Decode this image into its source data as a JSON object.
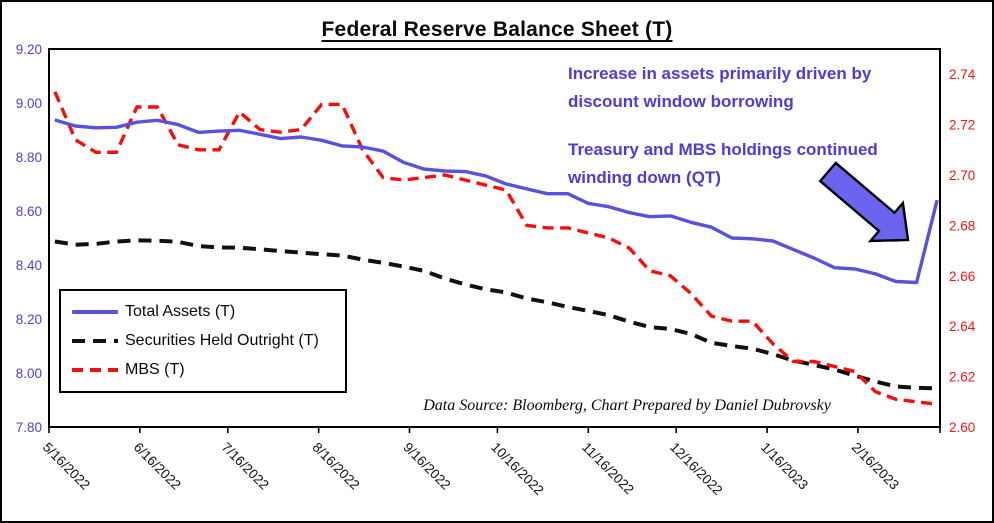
{
  "chart": {
    "title": "Federal Reserve Balance Sheet (T)",
    "source_note": "Data Source: Bloomberg, Chart Prepared by Daniel Dubrovsky",
    "annotation_increase": {
      "line1": "Increase in assets primarily driven by",
      "line2": "discount window borrowing"
    },
    "annotation_qt": {
      "line1": "Treasury and MBS holdings continued",
      "line2": "winding down (QT)"
    }
  },
  "colors": {
    "line_blue": "#5a52de",
    "annotation_blue": "#4c3cdb",
    "arrow_fill": "#6c63ee",
    "axis_left_label": "#4a43d6",
    "axis_right_label": "#f91410",
    "line_red": "#f90d0a",
    "line_black": "#111111",
    "axis_stroke": "#000000"
  },
  "chart_data": {
    "type": "line",
    "title": "Federal Reserve Balance Sheet (T)",
    "x_axis_start": "5/16/2022",
    "x_axis_end": "3/16/2023",
    "x_tick_labels": [
      "5/16/2022",
      "6/16/2022",
      "7/16/2022",
      "8/16/2022",
      "9/16/2022",
      "10/16/2022",
      "11/16/2022",
      "12/16/2022",
      "1/16/2023",
      "2/16/2023"
    ],
    "left_axis": {
      "min": 7.8,
      "max": 9.2,
      "ticks": [
        "9.20",
        "9.00",
        "8.80",
        "8.60",
        "8.40",
        "8.20",
        "8.00",
        "7.80"
      ]
    },
    "right_axis": {
      "min": 2.6,
      "max": 2.75,
      "ticks": [
        "2.74",
        "2.72",
        "2.70",
        "2.68",
        "2.66",
        "2.64",
        "2.62",
        "2.60"
      ]
    },
    "dates": [
      "5/18/2022",
      "5/25/2022",
      "6/1/2022",
      "6/8/2022",
      "6/15/2022",
      "6/22/2022",
      "6/29/2022",
      "7/6/2022",
      "7/13/2022",
      "7/20/2022",
      "7/27/2022",
      "8/3/2022",
      "8/10/2022",
      "8/17/2022",
      "8/24/2022",
      "8/31/2022",
      "9/7/2022",
      "9/14/2022",
      "9/21/2022",
      "9/28/2022",
      "10/5/2022",
      "10/12/2022",
      "10/19/2022",
      "10/26/2022",
      "11/2/2022",
      "11/9/2022",
      "11/16/2022",
      "11/23/2022",
      "11/30/2022",
      "12/7/2022",
      "12/14/2022",
      "12/21/2022",
      "12/28/2022",
      "1/4/2023",
      "1/11/2023",
      "1/18/2023",
      "1/25/2023",
      "2/1/2023",
      "2/8/2023",
      "2/15/2023",
      "2/22/2023",
      "3/1/2023",
      "3/8/2023",
      "3/15/2023"
    ],
    "series": [
      {
        "name": "Total Assets (T)",
        "axis": "left",
        "style": "solid",
        "color_key": "line_blue",
        "values": [
          8.937,
          8.915,
          8.908,
          8.91,
          8.929,
          8.936,
          8.92,
          8.891,
          8.896,
          8.899,
          8.884,
          8.868,
          8.874,
          8.862,
          8.841,
          8.837,
          8.822,
          8.78,
          8.755,
          8.748,
          8.746,
          8.73,
          8.7,
          8.682,
          8.664,
          8.664,
          8.628,
          8.616,
          8.594,
          8.579,
          8.582,
          8.558,
          8.54,
          8.5,
          8.497,
          8.489,
          8.457,
          8.426,
          8.39,
          8.385,
          8.367,
          8.339,
          8.335,
          8.64
        ]
      },
      {
        "name": "Securities Held Outright (T)",
        "axis": "left",
        "style": "dashed",
        "color_key": "line_black",
        "values": [
          8.487,
          8.475,
          8.478,
          8.487,
          8.491,
          8.49,
          8.486,
          8.47,
          8.465,
          8.464,
          8.458,
          8.452,
          8.446,
          8.44,
          8.435,
          8.42,
          8.408,
          8.394,
          8.378,
          8.35,
          8.328,
          8.31,
          8.298,
          8.276,
          8.262,
          8.245,
          8.23,
          8.214,
          8.19,
          8.17,
          8.163,
          8.145,
          8.112,
          8.1,
          8.09,
          8.07,
          8.046,
          8.03,
          8.013,
          7.99,
          7.968,
          7.95,
          7.945,
          7.943
        ]
      },
      {
        "name": "MBS (T)",
        "axis": "right",
        "style": "dashed",
        "color_key": "line_red",
        "values": [
          2.733,
          2.714,
          2.709,
          2.709,
          2.727,
          2.727,
          2.712,
          2.71,
          2.71,
          2.725,
          2.718,
          2.717,
          2.718,
          2.728,
          2.728,
          2.71,
          2.699,
          2.698,
          2.699,
          2.7,
          2.698,
          2.696,
          2.694,
          2.68,
          2.679,
          2.679,
          2.677,
          2.675,
          2.671,
          2.662,
          2.66,
          2.653,
          2.644,
          2.642,
          2.642,
          2.633,
          2.626,
          2.626,
          2.624,
          2.622,
          2.614,
          2.611,
          2.61,
          2.609
        ]
      }
    ]
  }
}
